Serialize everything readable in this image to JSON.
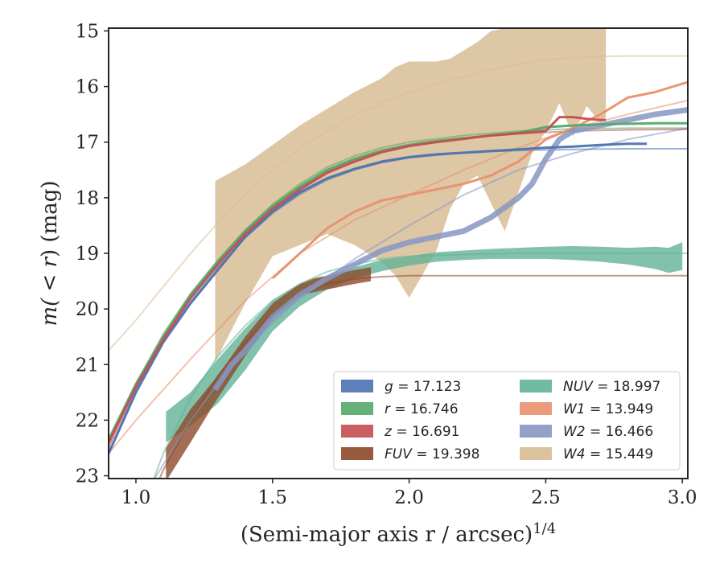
{
  "chart_data": {
    "type": "line",
    "xlabel": "(Semi-major axis r / arcsec)",
    "xlabel_power": "1/4",
    "ylabel_pre": "m(",
    "ylabel_mid": " < r",
    "ylabel_post": ") (mag)",
    "xlim": [
      0.9,
      3.02
    ],
    "ylim": [
      23.05,
      14.95
    ],
    "y_inverted": true,
    "grid": false,
    "legend_position": "lower-right",
    "xticks": [
      1.0,
      1.5,
      2.0,
      2.5,
      3.0
    ],
    "xtick_labels": [
      "1.0",
      "1.5",
      "2.0",
      "2.5",
      "3.0"
    ],
    "yticks": [
      15,
      16,
      17,
      18,
      19,
      20,
      21,
      22,
      23
    ],
    "ytick_labels": [
      "15",
      "16",
      "17",
      "18",
      "19",
      "20",
      "21",
      "22",
      "23"
    ],
    "legend": [
      {
        "band": "g",
        "value": "17.123",
        "color": "#4c72b0"
      },
      {
        "band": "r",
        "value": "16.746",
        "color": "#55a868"
      },
      {
        "band": "z",
        "value": "16.691",
        "color": "#c44e52"
      },
      {
        "band": "FUV",
        "value": "19.398",
        "color": "#8c4a2a"
      },
      {
        "band": "NUV",
        "value": "18.997",
        "color": "#63b297"
      },
      {
        "band": "W1",
        "value": "13.949",
        "color": "#e8906e"
      },
      {
        "band": "W2",
        "value": "16.466",
        "color": "#8796c2"
      },
      {
        "band": "W4",
        "value": "15.449",
        "color": "#d8bd95"
      }
    ],
    "series": [
      {
        "name": "W4",
        "color": "#d8bd95",
        "band_x": [
          1.29,
          1.4,
          1.5,
          1.6,
          1.7,
          1.8,
          1.9,
          1.95,
          2.0,
          2.1,
          2.15,
          2.2,
          2.25,
          2.3,
          2.35,
          2.4,
          2.45,
          2.5,
          2.55,
          2.6,
          2.65,
          2.7,
          2.72
        ],
        "band_upper": [
          17.7,
          17.4,
          17.05,
          16.7,
          16.4,
          16.1,
          15.85,
          15.65,
          15.55,
          15.55,
          15.5,
          15.35,
          15.2,
          15.0,
          14.95,
          14.95,
          14.95,
          14.95,
          14.95,
          14.95,
          14.95,
          14.95,
          14.95
        ],
        "band_lower": [
          20.95,
          19.9,
          19.05,
          18.85,
          18.65,
          18.85,
          19.15,
          19.4,
          19.8,
          18.95,
          18.2,
          17.75,
          17.6,
          18.1,
          18.6,
          17.9,
          17.2,
          16.8,
          16.3,
          16.9,
          16.35,
          16.65,
          16.55
        ],
        "model_x": [
          0.9,
          1.0,
          1.1,
          1.2,
          1.3,
          1.4,
          1.5,
          1.6,
          1.7,
          1.8,
          1.9,
          2.0,
          2.1,
          2.2,
          2.3,
          2.4,
          2.5,
          2.6,
          2.7,
          2.8,
          3.02
        ],
        "model_y": [
          20.75,
          20.2,
          19.6,
          19.0,
          18.45,
          17.95,
          17.5,
          17.12,
          16.8,
          16.52,
          16.3,
          16.1,
          15.95,
          15.82,
          15.7,
          15.6,
          15.52,
          15.48,
          15.46,
          15.45,
          15.45
        ]
      },
      {
        "name": "NUV",
        "color": "#63b297",
        "band_x": [
          1.11,
          1.2,
          1.3,
          1.4,
          1.5,
          1.6,
          1.7,
          1.8,
          1.9,
          2.0,
          2.1,
          2.2,
          2.3,
          2.4,
          2.5,
          2.6,
          2.7,
          2.8,
          2.9,
          2.95,
          3.0
        ],
        "band_upper": [
          21.85,
          21.5,
          20.9,
          20.35,
          19.85,
          19.55,
          19.4,
          19.25,
          19.12,
          19.05,
          18.98,
          18.95,
          18.92,
          18.9,
          18.88,
          18.87,
          18.88,
          18.9,
          18.88,
          18.9,
          18.8
        ],
        "band_lower": [
          22.4,
          22.1,
          21.7,
          21.1,
          20.4,
          19.95,
          19.65,
          19.45,
          19.32,
          19.22,
          19.15,
          19.12,
          19.1,
          19.1,
          19.1,
          19.12,
          19.15,
          19.2,
          19.28,
          19.35,
          19.3
        ],
        "model_x": [
          0.9,
          1.0,
          1.1,
          1.2,
          1.3,
          1.4,
          1.5,
          1.6,
          1.7,
          1.8,
          1.9,
          2.0,
          2.2,
          2.4,
          2.6,
          2.8,
          3.02
        ],
        "model_y": [
          25.0,
          23.9,
          22.6,
          21.6,
          20.85,
          20.3,
          19.85,
          19.55,
          19.33,
          19.2,
          19.1,
          19.05,
          19.02,
          19.0,
          19.0,
          19.0,
          19.0
        ]
      },
      {
        "name": "FUV",
        "color": "#8c4a2a",
        "band_x": [
          1.11,
          1.2,
          1.3,
          1.4,
          1.5,
          1.6,
          1.65,
          1.7,
          1.8,
          1.86
        ],
        "band_upper": [
          22.5,
          21.8,
          21.2,
          20.5,
          19.9,
          19.55,
          19.45,
          19.4,
          19.3,
          19.25
        ],
        "band_lower": [
          23.1,
          22.4,
          21.6,
          20.85,
          20.15,
          19.75,
          19.7,
          19.65,
          19.55,
          19.5
        ],
        "model_x": [
          0.9,
          1.0,
          1.1,
          1.2,
          1.3,
          1.4,
          1.5,
          1.6,
          1.7,
          1.8,
          1.9,
          2.0,
          2.2,
          2.5,
          3.02
        ],
        "model_y": [
          25.0,
          24.0,
          22.9,
          22.0,
          21.2,
          20.6,
          20.1,
          19.75,
          19.55,
          19.46,
          19.42,
          19.4,
          19.4,
          19.4,
          19.4
        ]
      },
      {
        "name": "W1",
        "color": "#e8906e",
        "data_x": [
          1.5,
          1.6,
          1.7,
          1.8,
          1.9,
          2.0,
          2.1,
          2.2,
          2.3,
          2.4,
          2.5,
          2.6,
          2.7,
          2.8,
          2.9,
          3.02
        ],
        "data_y": [
          19.45,
          19.0,
          18.55,
          18.25,
          18.05,
          17.95,
          17.85,
          17.75,
          17.6,
          17.35,
          16.95,
          16.75,
          16.5,
          16.2,
          16.1,
          15.92
        ],
        "model_x": [
          0.9,
          1.0,
          1.2,
          1.4,
          1.6,
          1.8,
          2.0,
          2.2,
          2.4,
          2.6,
          2.8,
          3.02
        ],
        "model_y": [
          22.6,
          22.0,
          20.9,
          19.85,
          19.0,
          18.4,
          17.95,
          17.5,
          17.1,
          16.75,
          16.5,
          16.25
        ]
      },
      {
        "name": "W2",
        "color": "#8796c2",
        "data_x": [
          1.29,
          1.35,
          1.4,
          1.5,
          1.6,
          1.7,
          1.8,
          1.9,
          2.0,
          2.1,
          2.2,
          2.3,
          2.4,
          2.45,
          2.5,
          2.55,
          2.6,
          2.7,
          2.8,
          2.9,
          3.02
        ],
        "data_y": [
          21.45,
          21.0,
          20.75,
          20.15,
          19.75,
          19.45,
          19.2,
          18.95,
          18.8,
          18.7,
          18.6,
          18.35,
          18.0,
          17.75,
          17.3,
          16.95,
          16.8,
          16.7,
          16.6,
          16.5,
          16.42
        ],
        "model_x": [
          0.9,
          1.0,
          1.2,
          1.4,
          1.6,
          1.8,
          2.0,
          2.2,
          2.4,
          2.6,
          2.8,
          3.02
        ],
        "model_y": [
          25.0,
          23.6,
          22.0,
          20.7,
          19.8,
          19.1,
          18.5,
          17.95,
          17.5,
          17.2,
          16.95,
          16.75
        ]
      },
      {
        "name": "g",
        "color": "#4c72b0",
        "data_x": [
          0.9,
          1.0,
          1.1,
          1.2,
          1.3,
          1.4,
          1.5,
          1.6,
          1.7,
          1.8,
          1.9,
          2.0,
          2.1,
          2.2,
          2.3,
          2.4,
          2.5,
          2.6,
          2.7,
          2.8,
          2.87
        ],
        "data_y": [
          22.6,
          21.5,
          20.6,
          19.9,
          19.3,
          18.7,
          18.25,
          17.9,
          17.65,
          17.48,
          17.35,
          17.27,
          17.22,
          17.19,
          17.16,
          17.13,
          17.1,
          17.08,
          17.05,
          17.03,
          17.03
        ],
        "model_x": [
          0.9,
          1.0,
          1.1,
          1.2,
          1.3,
          1.4,
          1.5,
          1.6,
          1.7,
          1.8,
          1.9,
          2.0,
          2.2,
          2.4,
          2.6,
          2.8,
          3.02
        ],
        "model_y": [
          22.6,
          21.45,
          20.55,
          19.85,
          19.25,
          18.72,
          18.28,
          17.94,
          17.68,
          17.5,
          17.37,
          17.28,
          17.19,
          17.15,
          17.13,
          17.12,
          17.12
        ]
      },
      {
        "name": "r",
        "color": "#55a868",
        "data_x": [
          0.9,
          1.0,
          1.1,
          1.2,
          1.3,
          1.4,
          1.5,
          1.6,
          1.7,
          1.8,
          1.9,
          2.0,
          2.1,
          2.2,
          2.3,
          2.4,
          2.5,
          2.6,
          2.7,
          2.8,
          2.9,
          3.02
        ],
        "data_y": [
          22.35,
          21.35,
          20.5,
          19.75,
          19.15,
          18.6,
          18.15,
          17.8,
          17.5,
          17.3,
          17.15,
          17.05,
          16.98,
          16.93,
          16.88,
          16.83,
          16.73,
          16.7,
          16.68,
          16.67,
          16.66,
          16.66
        ],
        "model_x": [
          0.9,
          1.0,
          1.1,
          1.2,
          1.3,
          1.4,
          1.5,
          1.6,
          1.7,
          1.8,
          1.9,
          2.0,
          2.2,
          2.4,
          2.6,
          2.8,
          3.02
        ],
        "model_y": [
          22.45,
          21.35,
          20.45,
          19.72,
          19.12,
          18.58,
          18.12,
          17.75,
          17.45,
          17.25,
          17.1,
          17.0,
          16.88,
          16.8,
          16.76,
          16.75,
          16.75
        ]
      },
      {
        "name": "z",
        "color": "#c44e52",
        "data_x": [
          0.9,
          1.0,
          1.1,
          1.2,
          1.3,
          1.4,
          1.5,
          1.6,
          1.7,
          1.8,
          1.9,
          2.0,
          2.1,
          2.2,
          2.3,
          2.4,
          2.5,
          2.55,
          2.6,
          2.65,
          2.7,
          2.72
        ],
        "data_y": [
          22.4,
          21.4,
          20.55,
          19.8,
          19.2,
          18.65,
          18.2,
          17.85,
          17.55,
          17.35,
          17.18,
          17.07,
          17.0,
          16.94,
          16.88,
          16.84,
          16.8,
          16.55,
          16.55,
          16.58,
          16.6,
          16.6
        ],
        "model_x": [
          0.9,
          1.0,
          1.1,
          1.2,
          1.3,
          1.4,
          1.5,
          1.6,
          1.7,
          1.8,
          1.9,
          2.0,
          2.2,
          2.4,
          2.6,
          2.8,
          3.02
        ],
        "model_y": [
          22.5,
          21.4,
          20.5,
          19.78,
          19.18,
          18.64,
          18.18,
          17.82,
          17.53,
          17.32,
          17.17,
          17.06,
          16.93,
          16.85,
          16.8,
          16.78,
          16.77
        ]
      }
    ]
  }
}
